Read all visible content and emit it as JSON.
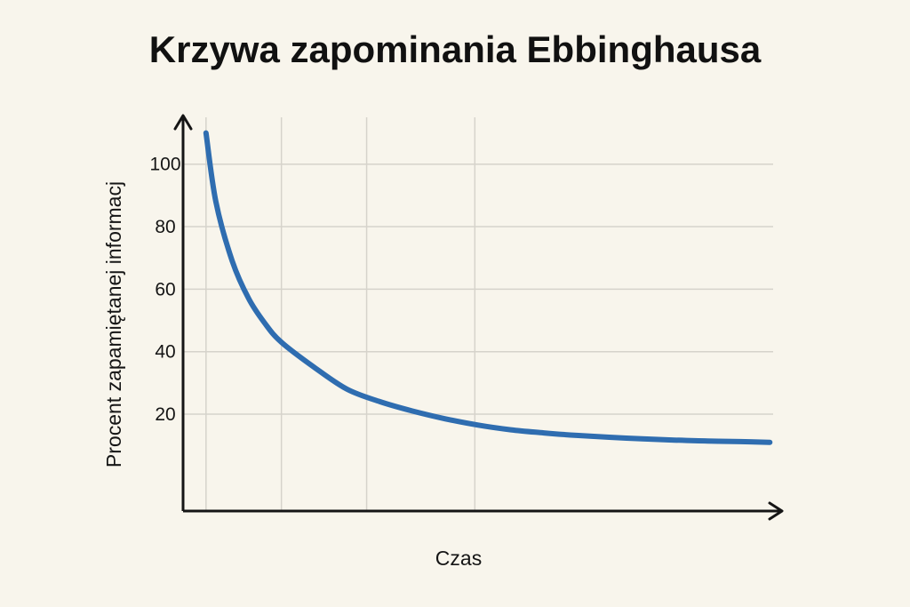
{
  "chart_data": {
    "type": "line",
    "title": "Krzywa zapominania Ebbinghausa",
    "xlabel": "Czas",
    "ylabel": "Procent zapamiętanej informacj",
    "y_ticks": [
      100,
      80,
      60,
      40,
      20
    ],
    "ylim": [
      -11,
      115
    ],
    "xlim": [
      0,
      9
    ],
    "grid": true,
    "legend": "none",
    "series": [
      {
        "color": "#2f6db0",
        "x": [
          0.35,
          0.5,
          0.75,
          1.0,
          1.25,
          1.5,
          2.0,
          2.5,
          3.0,
          3.5,
          4.0,
          4.5,
          5.0,
          5.5,
          6.0,
          6.5,
          7.0,
          7.5,
          8.0,
          8.5,
          8.95
        ],
        "y": [
          110,
          88,
          69,
          57,
          49,
          43,
          35,
          28,
          24,
          21,
          18.5,
          16.5,
          15,
          14,
          13.2,
          12.6,
          12.1,
          11.7,
          11.4,
          11.2,
          11
        ]
      }
    ]
  }
}
